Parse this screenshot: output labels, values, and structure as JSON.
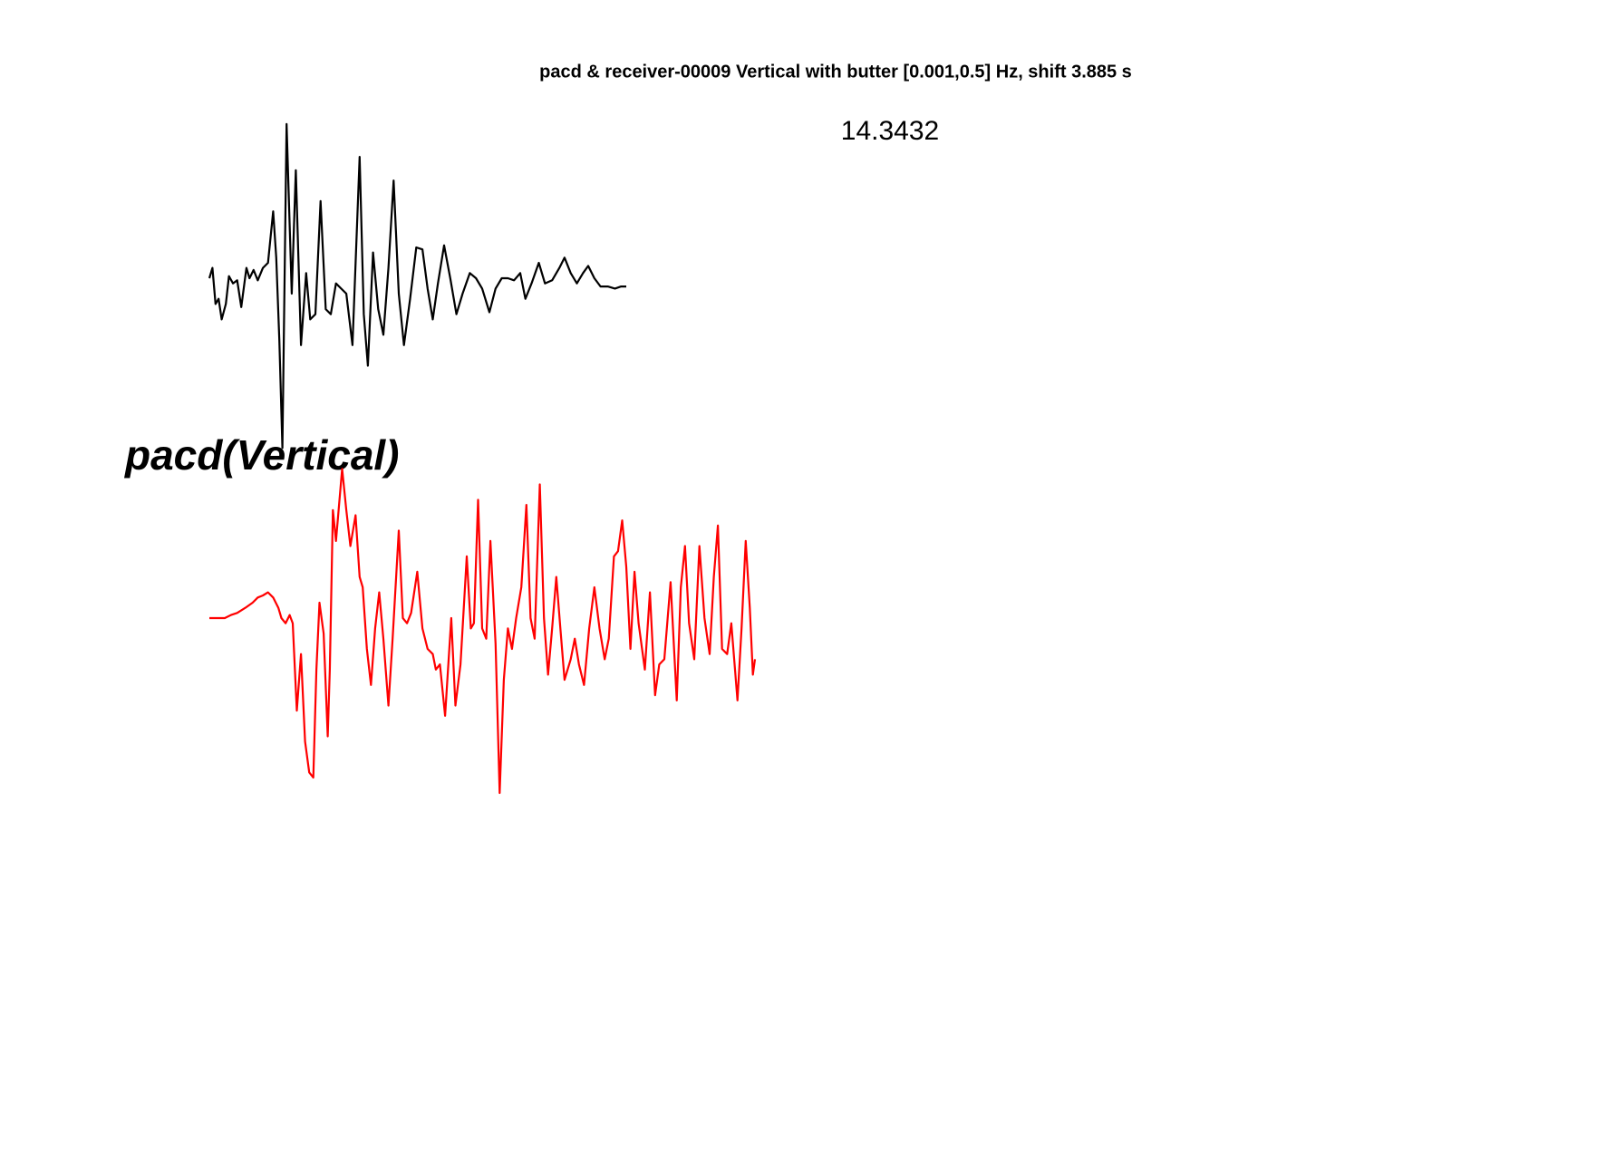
{
  "chart_data": [
    {
      "type": "line",
      "title": "pacd & receiver-00009 Vertical with butter [0.001,0.5] Hz, shift 3.885 s",
      "annotation": "14.3432",
      "color": "#000000",
      "xlim": [
        203,
        733
      ],
      "ylim": [
        -200,
        200
      ],
      "x": [
        203,
        206,
        209,
        212,
        215,
        219,
        222,
        226,
        230,
        234,
        239,
        242,
        246,
        250,
        255,
        260,
        265,
        268,
        271,
        274,
        278,
        283,
        287,
        292,
        297,
        301,
        306,
        311,
        316,
        321,
        326,
        331,
        336,
        342,
        349,
        353,
        357,
        362,
        367,
        372,
        377,
        382,
        387,
        392,
        398,
        404,
        410,
        415,
        420,
        425,
        431,
        437,
        443,
        449,
        456,
        462,
        468,
        475,
        481,
        487,
        493,
        499,
        505,
        510,
        516,
        523,
        529,
        536,
        543,
        548,
        554,
        560,
        566,
        571,
        577,
        583,
        590,
        597,
        603,
        608
      ],
      "values": [
        0,
        10,
        -25,
        -20,
        -40,
        -25,
        2,
        -5,
        -2,
        -28,
        10,
        0,
        8,
        -2,
        10,
        15,
        65,
        20,
        -60,
        -165,
        150,
        -15,
        105,
        -65,
        5,
        -40,
        -35,
        75,
        -30,
        -35,
        -5,
        -10,
        -15,
        -65,
        118,
        -35,
        -85,
        25,
        -30,
        -55,
        10,
        95,
        -15,
        -65,
        -20,
        30,
        28,
        -10,
        -40,
        -5,
        32,
        0,
        -35,
        -15,
        5,
        0,
        -10,
        -33,
        -10,
        0,
        0,
        -2,
        5,
        -20,
        -5,
        15,
        -5,
        -2,
        10,
        20,
        5,
        -5,
        5,
        12,
        0,
        -8,
        -8,
        -10,
        -8,
        -8
      ]
    },
    {
      "type": "line",
      "label": "pacd(Vertical)",
      "color": "#ff0000",
      "xlim": [
        203,
        733
      ],
      "ylim": [
        -200,
        200
      ],
      "x": [
        203,
        218,
        224,
        230,
        238,
        245,
        250,
        255,
        260,
        265,
        270,
        273,
        277,
        281,
        284,
        288,
        292,
        296,
        300,
        304,
        307,
        310,
        314,
        318,
        320,
        323,
        326,
        329,
        332,
        336,
        340,
        345,
        349,
        352,
        356,
        360,
        364,
        368,
        372,
        377,
        381,
        387,
        391,
        395,
        399,
        405,
        410,
        415,
        420,
        423,
        427,
        432,
        438,
        442,
        447,
        453,
        457,
        460,
        464,
        468,
        472,
        476,
        481,
        485,
        489,
        493,
        497,
        501,
        506,
        511,
        515,
        519,
        524,
        528,
        532,
        536,
        540,
        544,
        548,
        554,
        558,
        562,
        567,
        572,
        577,
        582,
        587,
        591,
        596,
        600,
        604,
        608,
        612,
        616,
        620,
        626,
        631,
        636,
        640,
        645,
        651,
        657,
        661,
        665,
        669,
        674,
        679,
        684,
        689,
        693,
        697,
        701,
        706,
        710,
        716,
        720,
        724,
        728,
        731,
        733
      ],
      "values": [
        0,
        0,
        3,
        5,
        10,
        15,
        20,
        22,
        25,
        20,
        10,
        0,
        -5,
        3,
        -5,
        -90,
        -35,
        -120,
        -150,
        -155,
        -50,
        15,
        -15,
        -115,
        -50,
        105,
        75,
        110,
        145,
        105,
        70,
        100,
        40,
        30,
        -30,
        -65,
        -10,
        25,
        -20,
        -85,
        -20,
        85,
        0,
        -5,
        5,
        45,
        -10,
        -30,
        -35,
        -50,
        -45,
        -95,
        0,
        -85,
        -45,
        60,
        -10,
        -5,
        115,
        -10,
        -20,
        75,
        -25,
        -170,
        -60,
        -10,
        -30,
        0,
        30,
        110,
        0,
        -20,
        130,
        0,
        -55,
        -10,
        40,
        -10,
        -60,
        -40,
        -20,
        -45,
        -65,
        -10,
        30,
        -10,
        -40,
        -20,
        60,
        65,
        95,
        50,
        -30,
        45,
        -5,
        -50,
        25,
        -75,
        -45,
        -40,
        35,
        -80,
        30,
        70,
        -5,
        -40,
        70,
        0,
        -35,
        40,
        90,
        -30,
        -35,
        -5,
        -80,
        -10,
        75,
        10,
        -55,
        -40
      ]
    }
  ]
}
